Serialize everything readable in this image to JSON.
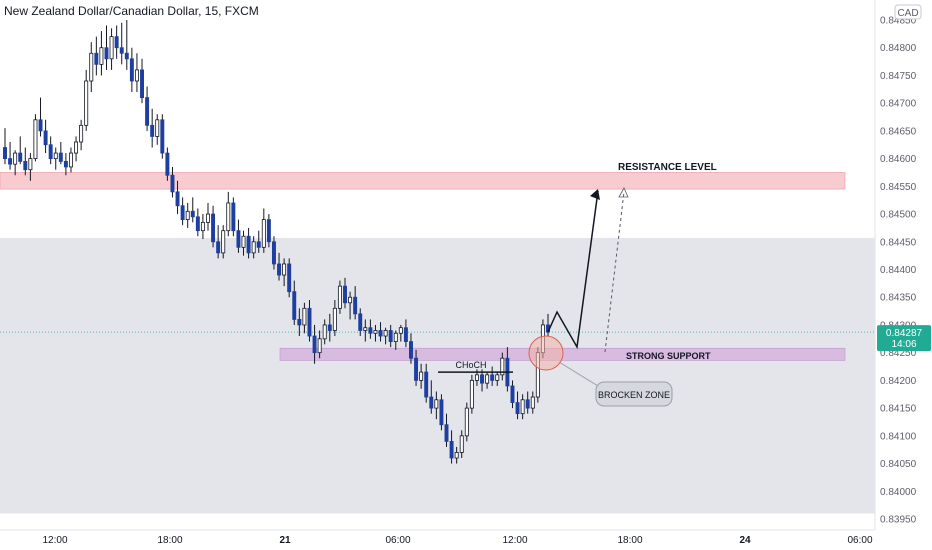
{
  "header": {
    "title": "New Zealand Dollar/Canadian Dollar, 15, FXCM",
    "currency_badge": "CAD"
  },
  "price_tag": {
    "price": "0.84287",
    "countdown": "14:06"
  },
  "annotations": {
    "resistance": "RESISTANCE LEVEL",
    "support": "STRONG SUPPORT",
    "choch": "CHoCH",
    "broken": "BROCKEN ZONE"
  },
  "colors": {
    "bull": "#ffffff",
    "bear": "#1e3fa0",
    "wick": "#131722",
    "resistance_fill": "#f7c6cc",
    "support_fill": "#d7b8e0",
    "gray_zone": "#e3e5ea",
    "price_tag": "#22ab94"
  },
  "chart_data": {
    "type": "candlestick",
    "title": "New Zealand Dollar/Canadian Dollar, 15, FXCM",
    "y_ticks": [
      "0.84850",
      "0.84800",
      "0.84750",
      "0.84700",
      "0.84650",
      "0.84600",
      "0.84550",
      "0.84500",
      "0.84450",
      "0.84400",
      "0.84350",
      "0.84300",
      "0.84250",
      "0.84200",
      "0.84150",
      "0.84100",
      "0.84050",
      "0.84000",
      "0.83950"
    ],
    "x_ticks": [
      {
        "label": "12:00",
        "bold": false
      },
      {
        "label": "18:00",
        "bold": false
      },
      {
        "label": "21",
        "bold": true
      },
      {
        "label": "06:00",
        "bold": false
      },
      {
        "label": "12:00",
        "bold": false
      },
      {
        "label": "18:00",
        "bold": false
      },
      {
        "label": "24",
        "bold": true
      },
      {
        "label": "06:00",
        "bold": false
      }
    ],
    "ylim": [
      0.83945,
      0.8487
    ],
    "current_price": 0.84287,
    "resistance_zone": [
      0.84545,
      0.84575
    ],
    "support_zone": [
      0.84236,
      0.84258
    ],
    "projection_zone": [
      0.8396,
      0.84457
    ],
    "choch_level": 0.84215,
    "ohlc": [
      [
        0.8462,
        0.84655,
        0.8459,
        0.846
      ],
      [
        0.846,
        0.8463,
        0.8458,
        0.8459
      ],
      [
        0.8459,
        0.84615,
        0.8457,
        0.8461
      ],
      [
        0.8461,
        0.8464,
        0.8459,
        0.84595
      ],
      [
        0.84595,
        0.8462,
        0.8457,
        0.8458
      ],
      [
        0.8458,
        0.8461,
        0.8456,
        0.846
      ],
      [
        0.846,
        0.8468,
        0.84595,
        0.8467
      ],
      [
        0.8467,
        0.8471,
        0.8464,
        0.8465
      ],
      [
        0.8465,
        0.8467,
        0.8461,
        0.84625
      ],
      [
        0.84625,
        0.8464,
        0.8459,
        0.846
      ],
      [
        0.846,
        0.8462,
        0.8458,
        0.8461
      ],
      [
        0.8461,
        0.8463,
        0.8459,
        0.84595
      ],
      [
        0.84595,
        0.8461,
        0.8457,
        0.84585
      ],
      [
        0.84585,
        0.8462,
        0.84575,
        0.8461
      ],
      [
        0.8461,
        0.8464,
        0.84595,
        0.8463
      ],
      [
        0.8463,
        0.8467,
        0.84615,
        0.8466
      ],
      [
        0.8466,
        0.8476,
        0.8465,
        0.8474
      ],
      [
        0.8474,
        0.8481,
        0.8472,
        0.8479
      ],
      [
        0.8479,
        0.8482,
        0.8475,
        0.8477
      ],
      [
        0.8477,
        0.8483,
        0.8475,
        0.848
      ],
      [
        0.848,
        0.8484,
        0.8476,
        0.8478
      ],
      [
        0.8478,
        0.84835,
        0.8476,
        0.8482
      ],
      [
        0.8482,
        0.8484,
        0.8478,
        0.848
      ],
      [
        0.848,
        0.84845,
        0.8477,
        0.8479
      ],
      [
        0.8479,
        0.8485,
        0.8476,
        0.8478
      ],
      [
        0.8478,
        0.848,
        0.8472,
        0.8474
      ],
      [
        0.8474,
        0.8479,
        0.8472,
        0.8476
      ],
      [
        0.8476,
        0.8478,
        0.847,
        0.8471
      ],
      [
        0.8471,
        0.8473,
        0.8465,
        0.8466
      ],
      [
        0.8466,
        0.8469,
        0.8462,
        0.8464
      ],
      [
        0.8464,
        0.8468,
        0.84625,
        0.8467
      ],
      [
        0.8467,
        0.8468,
        0.846,
        0.8461
      ],
      [
        0.8461,
        0.8462,
        0.8456,
        0.8457
      ],
      [
        0.8457,
        0.84585,
        0.8453,
        0.8454
      ],
      [
        0.8454,
        0.8456,
        0.845,
        0.84515
      ],
      [
        0.84515,
        0.8453,
        0.8448,
        0.8449
      ],
      [
        0.8449,
        0.8452,
        0.84475,
        0.84505
      ],
      [
        0.84505,
        0.8453,
        0.84485,
        0.84495
      ],
      [
        0.84495,
        0.8451,
        0.8446,
        0.8447
      ],
      [
        0.8447,
        0.845,
        0.84455,
        0.84485
      ],
      [
        0.84485,
        0.8452,
        0.8447,
        0.845
      ],
      [
        0.845,
        0.84515,
        0.8444,
        0.8445
      ],
      [
        0.8445,
        0.8448,
        0.8442,
        0.8443
      ],
      [
        0.8443,
        0.8448,
        0.8442,
        0.8447
      ],
      [
        0.8447,
        0.8454,
        0.8446,
        0.8452
      ],
      [
        0.8452,
        0.8453,
        0.8446,
        0.8447
      ],
      [
        0.8447,
        0.8449,
        0.8443,
        0.8444
      ],
      [
        0.8444,
        0.8447,
        0.84425,
        0.8446
      ],
      [
        0.8446,
        0.84475,
        0.8442,
        0.8443
      ],
      [
        0.8443,
        0.8446,
        0.8442,
        0.8445
      ],
      [
        0.8445,
        0.8447,
        0.8443,
        0.8444
      ],
      [
        0.8444,
        0.8451,
        0.8443,
        0.8449
      ],
      [
        0.8449,
        0.845,
        0.8444,
        0.8445
      ],
      [
        0.8445,
        0.8446,
        0.844,
        0.8441
      ],
      [
        0.8441,
        0.8443,
        0.8438,
        0.8439
      ],
      [
        0.8439,
        0.8442,
        0.8437,
        0.8441
      ],
      [
        0.8441,
        0.8442,
        0.8435,
        0.8436
      ],
      [
        0.8436,
        0.8438,
        0.843,
        0.8431
      ],
      [
        0.8431,
        0.8433,
        0.8428,
        0.843
      ],
      [
        0.843,
        0.8434,
        0.84285,
        0.8433
      ],
      [
        0.8433,
        0.84345,
        0.8427,
        0.8428
      ],
      [
        0.8428,
        0.843,
        0.8423,
        0.8425
      ],
      [
        0.8425,
        0.8429,
        0.8424,
        0.84275
      ],
      [
        0.84275,
        0.8431,
        0.84265,
        0.843
      ],
      [
        0.843,
        0.8432,
        0.8427,
        0.8429
      ],
      [
        0.8429,
        0.84345,
        0.8428,
        0.8433
      ],
      [
        0.8433,
        0.8438,
        0.8432,
        0.8437
      ],
      [
        0.8437,
        0.84385,
        0.8433,
        0.8434
      ],
      [
        0.8434,
        0.8436,
        0.8431,
        0.8435
      ],
      [
        0.8435,
        0.8437,
        0.8431,
        0.8432
      ],
      [
        0.8432,
        0.8433,
        0.8428,
        0.8429
      ],
      [
        0.8429,
        0.8431,
        0.8427,
        0.84295
      ],
      [
        0.84295,
        0.8431,
        0.84275,
        0.84285
      ],
      [
        0.84285,
        0.843,
        0.8427,
        0.8429
      ],
      [
        0.8429,
        0.84305,
        0.8427,
        0.8428
      ],
      [
        0.8428,
        0.84295,
        0.84265,
        0.8429
      ],
      [
        0.8429,
        0.843,
        0.8426,
        0.8427
      ],
      [
        0.8427,
        0.8429,
        0.84255,
        0.84285
      ],
      [
        0.84285,
        0.843,
        0.8427,
        0.84295
      ],
      [
        0.84295,
        0.8431,
        0.8426,
        0.8427
      ],
      [
        0.8427,
        0.84285,
        0.8423,
        0.8424
      ],
      [
        0.8424,
        0.84255,
        0.8419,
        0.842
      ],
      [
        0.842,
        0.8423,
        0.84185,
        0.84215
      ],
      [
        0.84215,
        0.8423,
        0.8416,
        0.8417
      ],
      [
        0.8417,
        0.842,
        0.8414,
        0.8415
      ],
      [
        0.8415,
        0.8418,
        0.8413,
        0.84165
      ],
      [
        0.84165,
        0.84175,
        0.8411,
        0.8412
      ],
      [
        0.8412,
        0.8414,
        0.8408,
        0.8409
      ],
      [
        0.8409,
        0.8411,
        0.8405,
        0.8406
      ],
      [
        0.8406,
        0.8408,
        0.8405,
        0.8407
      ],
      [
        0.8407,
        0.8411,
        0.8406,
        0.841
      ],
      [
        0.841,
        0.8416,
        0.8409,
        0.8415
      ],
      [
        0.8415,
        0.8421,
        0.8414,
        0.842
      ],
      [
        0.842,
        0.8422,
        0.8419,
        0.8421
      ],
      [
        0.8421,
        0.8422,
        0.8418,
        0.84195
      ],
      [
        0.84195,
        0.84215,
        0.84185,
        0.8421
      ],
      [
        0.8421,
        0.84225,
        0.8419,
        0.842
      ],
      [
        0.842,
        0.84215,
        0.8419,
        0.8421
      ],
      [
        0.8421,
        0.8425,
        0.842,
        0.8424
      ],
      [
        0.8424,
        0.8426,
        0.8418,
        0.8419
      ],
      [
        0.8419,
        0.842,
        0.8415,
        0.8416
      ],
      [
        0.8416,
        0.8418,
        0.8413,
        0.8414
      ],
      [
        0.8414,
        0.84175,
        0.8413,
        0.84165
      ],
      [
        0.84165,
        0.8418,
        0.8414,
        0.8415
      ],
      [
        0.8415,
        0.8418,
        0.8414,
        0.8417
      ],
      [
        0.8417,
        0.8426,
        0.8416,
        0.8425
      ],
      [
        0.8425,
        0.8431,
        0.8424,
        0.843
      ],
      [
        0.843,
        0.8432,
        0.8428,
        0.84287
      ]
    ]
  }
}
